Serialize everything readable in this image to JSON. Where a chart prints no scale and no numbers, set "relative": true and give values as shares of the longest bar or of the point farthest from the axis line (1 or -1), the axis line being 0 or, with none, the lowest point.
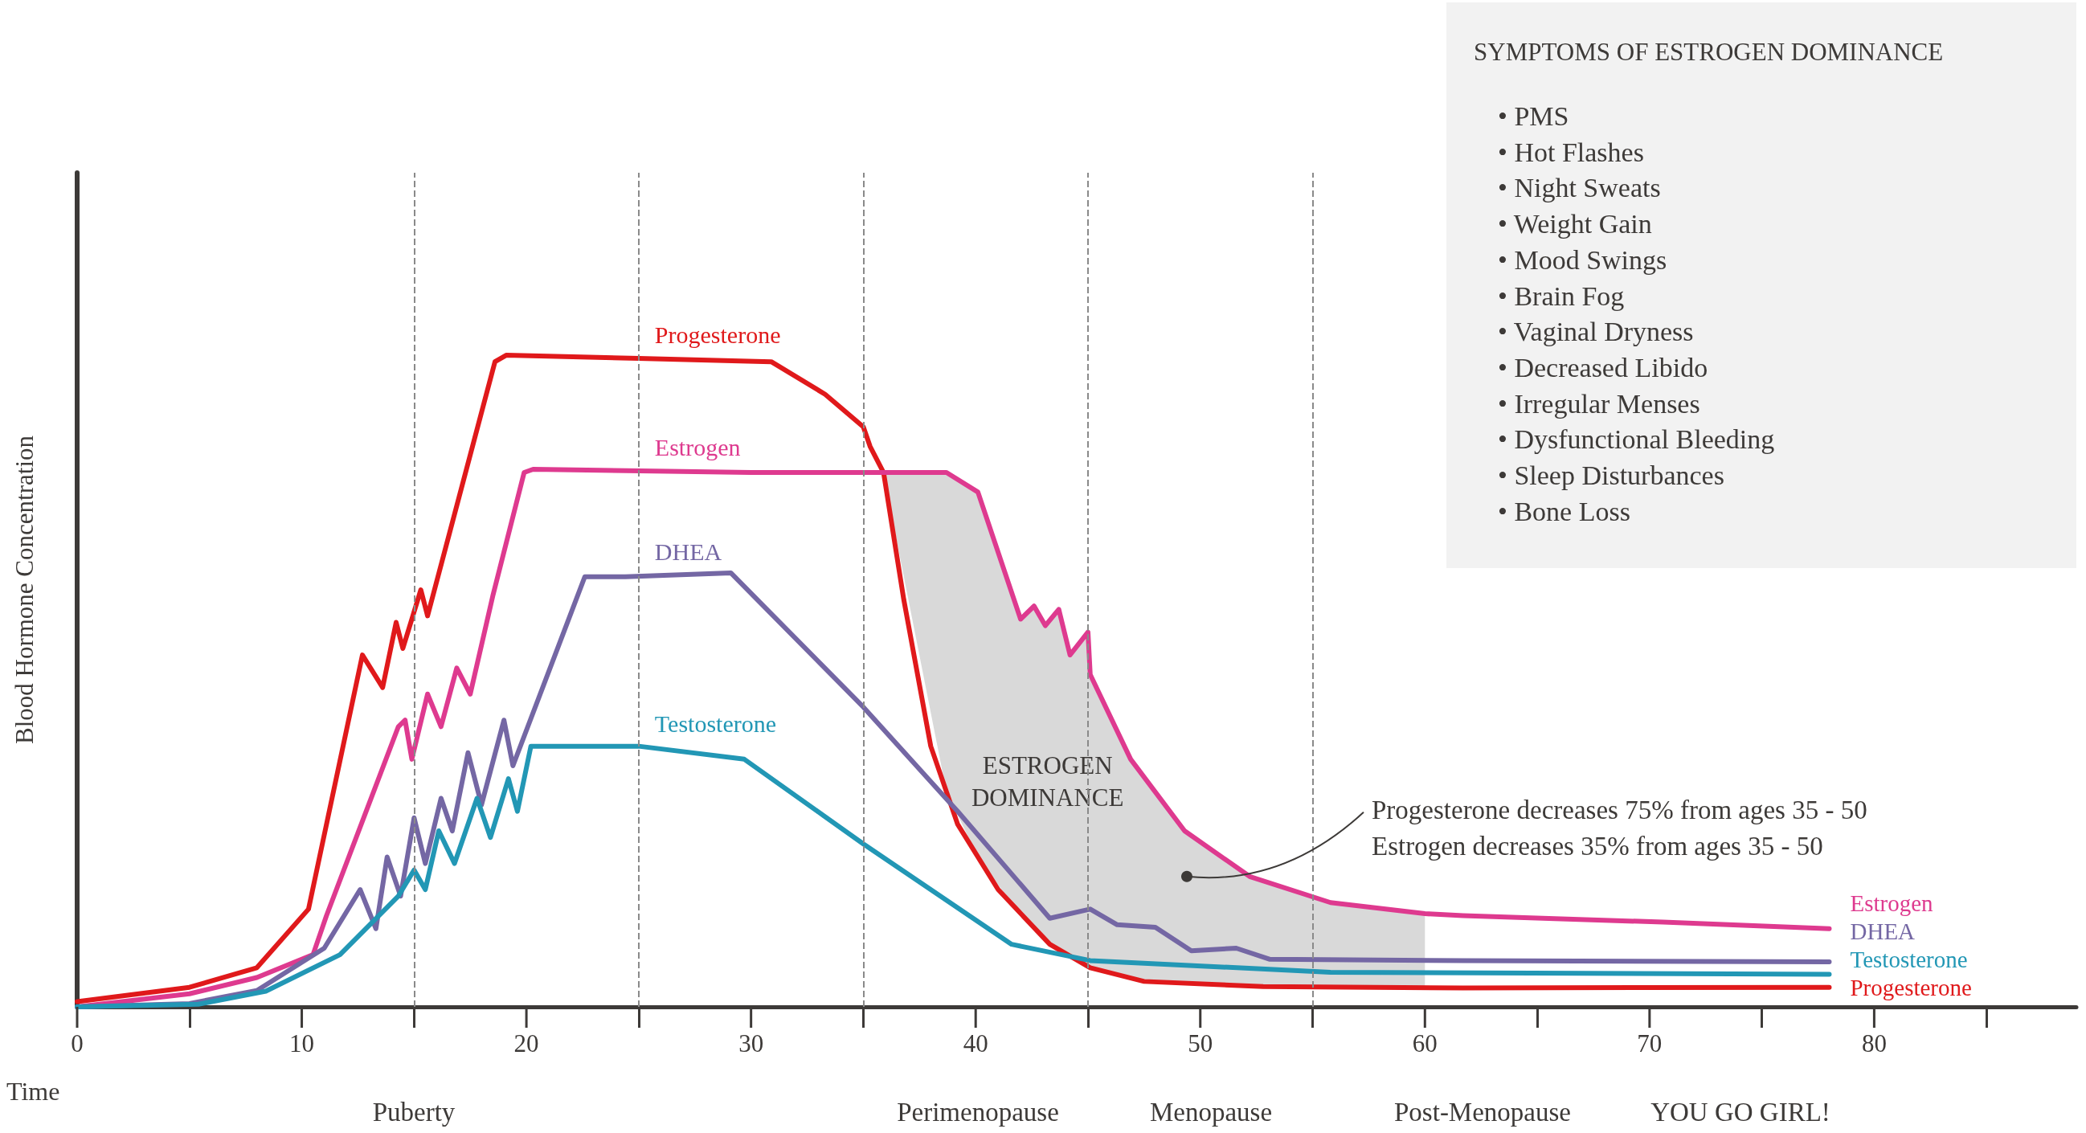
{
  "chart_data": {
    "type": "line",
    "relative": true,
    "xlabel": "Time",
    "ylabel": "Blood Hormone Concentration",
    "xlim": [
      0,
      89
    ],
    "xticks": [
      0,
      10,
      20,
      30,
      40,
      50,
      60,
      70,
      80
    ],
    "grid": false,
    "legend": false,
    "marker": "none",
    "line_style": "solid",
    "series": [
      {
        "name": "Progesterone",
        "color": "#e0191b",
        "x": [
          0,
          5,
          8,
          10.3,
          12.7,
          13.6,
          14.2,
          14.5,
          15.3,
          15.6,
          18.6,
          19.1,
          25,
          30.9,
          33.3,
          35,
          35.3,
          35.9,
          36.8,
          38,
          39.2,
          41,
          43.3,
          45.1,
          47.5,
          52.8,
          61.7,
          78
        ],
        "values": [
          0.008,
          0.03,
          0.06,
          0.15,
          0.54,
          0.49,
          0.59,
          0.55,
          0.64,
          0.6,
          0.99,
          1,
          0.995,
          0.99,
          0.94,
          0.89,
          0.86,
          0.82,
          0.625,
          0.4,
          0.28,
          0.18,
          0.096,
          0.06,
          0.039,
          0.031,
          0.029,
          0.03
        ]
      },
      {
        "name": "Estrogen",
        "color": "#de3a8f",
        "x": [
          0,
          5,
          8,
          10.5,
          11.1,
          14.3,
          14.6,
          14.9,
          15.6,
          16.2,
          16.9,
          17.5,
          18.5,
          19.9,
          20.3,
          30,
          36,
          38.7,
          40.1,
          42,
          42.6,
          43.1,
          43.7,
          44.2,
          45,
          45.1,
          46.9,
          49.3,
          52.2,
          55.8,
          60,
          61.7,
          70.6,
          78
        ],
        "values": [
          0,
          0.02,
          0.045,
          0.08,
          0.14,
          0.43,
          0.44,
          0.38,
          0.48,
          0.43,
          0.52,
          0.48,
          0.63,
          0.82,
          0.825,
          0.82,
          0.82,
          0.82,
          0.79,
          0.595,
          0.615,
          0.585,
          0.61,
          0.54,
          0.575,
          0.51,
          0.38,
          0.27,
          0.2,
          0.16,
          0.143,
          0.14,
          0.13,
          0.12
        ],
        "lower": [
          null,
          null,
          null,
          null,
          null,
          null,
          null,
          null,
          null,
          null,
          null,
          null,
          null,
          null,
          null,
          null,
          0.8,
          0.33,
          0.23,
          0.14,
          0.12,
          0.1,
          0.09,
          0.078,
          0.062,
          0.06,
          0.044,
          0.036,
          0.032,
          0.03,
          0.029,
          null,
          null,
          null
        ],
        "upper": [
          null,
          null,
          null,
          null,
          null,
          null,
          null,
          null,
          null,
          null,
          null,
          null,
          null,
          null,
          null,
          null,
          0.82,
          0.82,
          0.79,
          0.595,
          0.615,
          0.585,
          0.61,
          0.54,
          0.575,
          0.51,
          0.38,
          0.27,
          0.2,
          0.16,
          0.143,
          null,
          null,
          null
        ]
      },
      {
        "name": "DHEA",
        "color": "#7467a4",
        "x": [
          0,
          5,
          8,
          11,
          12.6,
          13.3,
          13.8,
          14.4,
          15,
          15.5,
          16.2,
          16.7,
          17.4,
          18,
          19,
          19.4,
          22.6,
          24.4,
          29.1,
          35,
          39.2,
          43.3,
          45.1,
          46.3,
          48,
          49.6,
          51.6,
          53.1,
          61.7,
          78
        ],
        "values": [
          0,
          0.005,
          0.025,
          0.09,
          0.18,
          0.12,
          0.23,
          0.17,
          0.29,
          0.22,
          0.32,
          0.27,
          0.39,
          0.31,
          0.44,
          0.37,
          0.66,
          0.66,
          0.666,
          0.46,
          0.3,
          0.136,
          0.15,
          0.126,
          0.122,
          0.086,
          0.09,
          0.073,
          0.071,
          0.069
        ]
      },
      {
        "name": "Testosterone",
        "color": "#2297b5",
        "x": [
          0,
          5.4,
          8.4,
          11.7,
          14.3,
          15,
          15.5,
          16.1,
          16.8,
          17.8,
          18.4,
          19.2,
          19.6,
          20.2,
          25,
          29.7,
          35,
          41.6,
          45.1,
          55.8,
          78
        ],
        "values": [
          0,
          0.004,
          0.024,
          0.08,
          0.17,
          0.21,
          0.18,
          0.27,
          0.22,
          0.32,
          0.26,
          0.35,
          0.3,
          0.4,
          0.4,
          0.38,
          0.25,
          0.096,
          0.071,
          0.053,
          0.05
        ]
      }
    ],
    "ref_lines": [
      {
        "axis": "x",
        "value": 15,
        "color": "#8a8a8a",
        "line_style": "dashed"
      },
      {
        "axis": "x",
        "value": 25,
        "color": "#8a8a8a",
        "line_style": "dashed"
      },
      {
        "axis": "x",
        "value": 35,
        "color": "#8a8a8a",
        "line_style": "dashed"
      },
      {
        "axis": "x",
        "value": 45,
        "color": "#8a8a8a",
        "line_style": "dashed"
      },
      {
        "axis": "x",
        "value": 55,
        "color": "#8a8a8a",
        "line_style": "dashed"
      }
    ],
    "annotations": [
      "ESTROGEN\nDOMINANCE",
      "SYMPTOMS OF ESTROGEN DOMINANCE",
      "• PMS",
      "• Hot Flashes",
      "• Night Sweats",
      "• Weight Gain",
      "• Mood Swings",
      "• Brain Fog",
      "• Vaginal Dryness",
      "• Decreased Libido",
      "• Irregular Menses",
      "• Dysfunctional Bleeding",
      "• Sleep Disturbances",
      "• Bone Loss",
      "Puberty",
      "Perimenopause",
      "Menopause",
      "Post-Menopause",
      "YOU GO GIRL!",
      {
        "text": "Progesterone decreases 75% from ages 35 - 50\nEstrogen decreases 35% from ages 35 - 50",
        "x": 49.4,
        "y": 0.2
      }
    ]
  }
}
